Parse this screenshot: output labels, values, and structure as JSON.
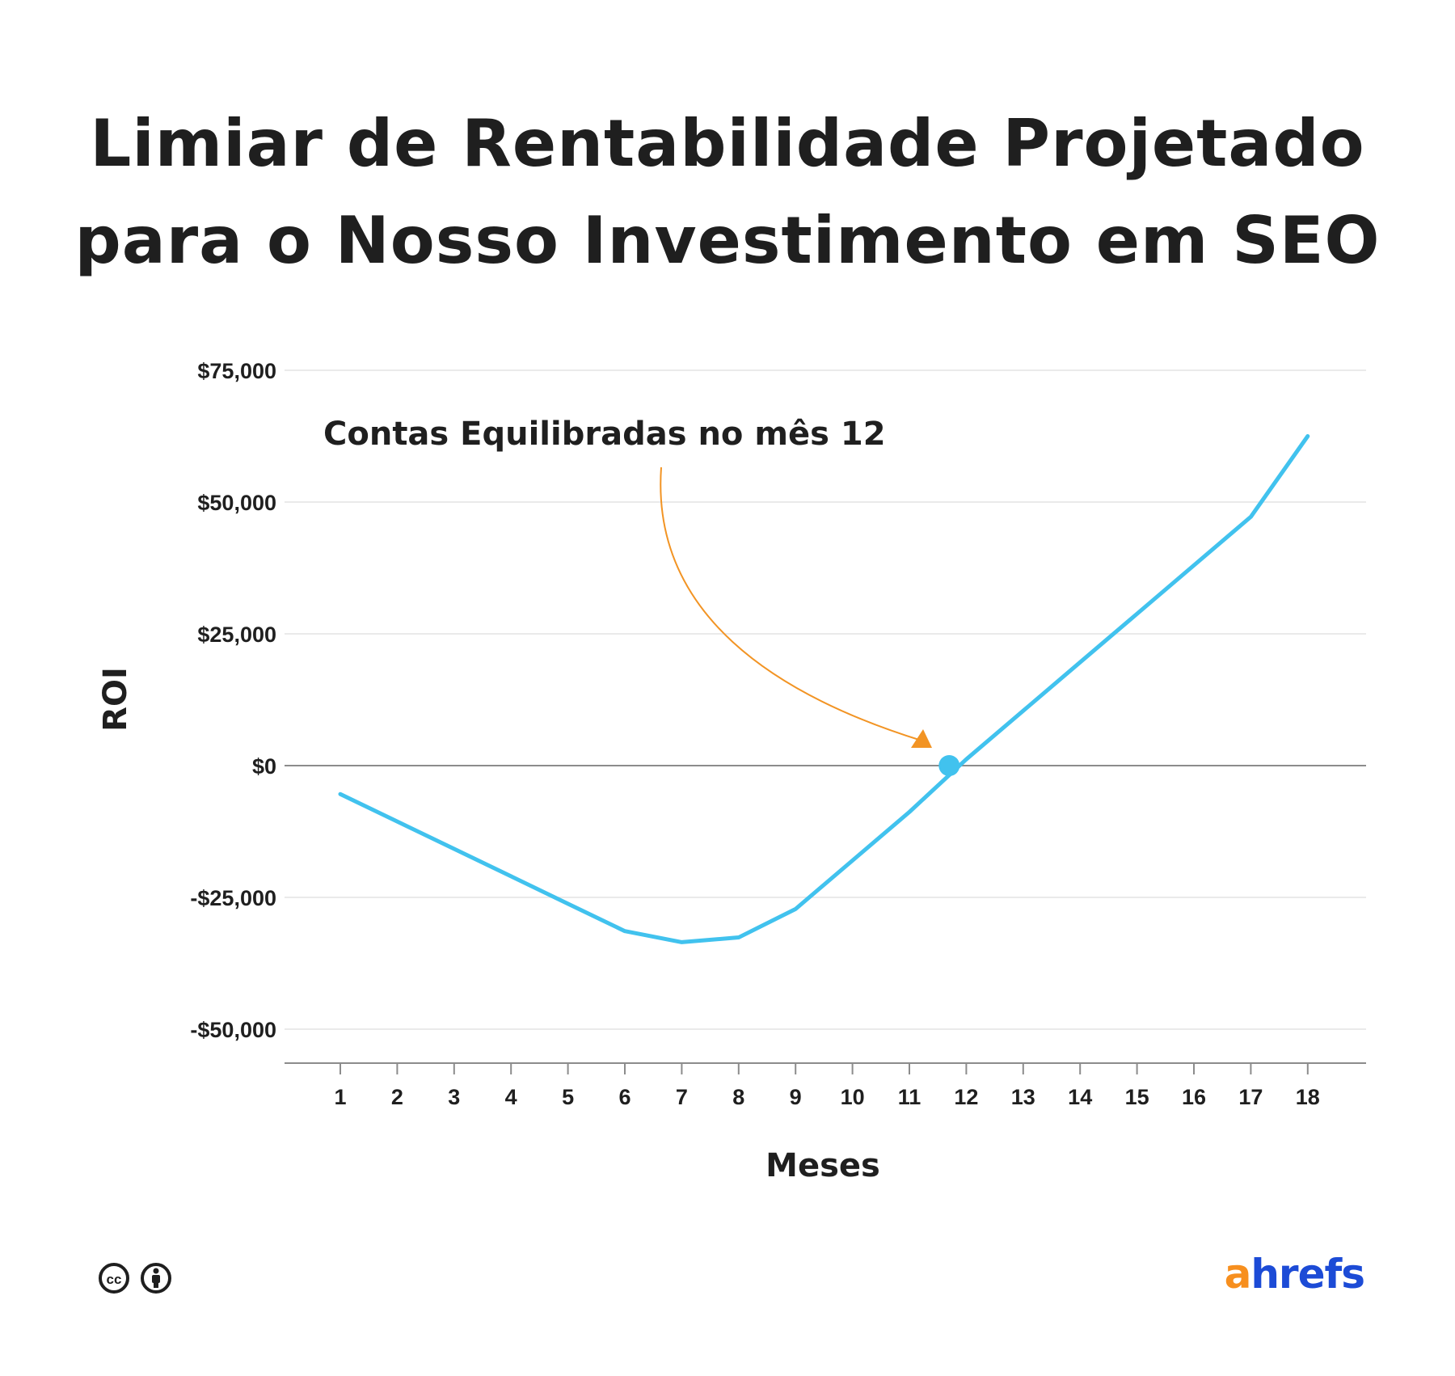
{
  "colors": {
    "line": "#41c2ee",
    "arrow": "#f29424",
    "grid": "#e3e3e3",
    "zero_line": "#8c8c8c",
    "logo_a": "#f78f1e",
    "logo_rest": "#1c4bd6"
  },
  "icons": [
    "creative-commons-icon",
    "attribution-icon"
  ],
  "logo": {
    "part1": "a",
    "part2": "hrefs"
  },
  "chart_data": {
    "type": "line",
    "title": "Limiar de Rentabilidade Projetado para o Nosso Investimento em SEO",
    "title_lines": [
      "Limiar de Rentabilidade Projetado",
      "para o Nosso Investimento em SEO"
    ],
    "xlabel": "Meses",
    "ylabel": "ROI",
    "x": [
      1,
      2,
      3,
      4,
      5,
      6,
      7,
      8,
      9,
      10,
      11,
      12,
      13,
      14,
      15,
      16,
      17,
      18
    ],
    "x_tick_labels": [
      "1",
      "2",
      "3",
      "4",
      "5",
      "6",
      "7",
      "8",
      "9",
      "10",
      "11",
      "12",
      "13",
      "14",
      "15",
      "16",
      "17",
      "18"
    ],
    "series": [
      {
        "values": [
          -5400,
          -10600,
          -15800,
          -21000,
          -26200,
          -31400,
          -33500,
          -32600,
          -27200,
          -18000,
          -8800,
          1200,
          10400,
          19600,
          28800,
          38000,
          47200,
          62500
        ]
      }
    ],
    "ylim": [
      -57000,
      75000
    ],
    "y_ticks": [
      75000,
      50000,
      25000,
      0,
      -25000,
      -50000
    ],
    "y_tick_labels": [
      "$75,000",
      "$50,000",
      "$25,000",
      "$0",
      "-$25,000",
      "-$50,000"
    ],
    "grid": true,
    "annotation": {
      "text": "Contas Equilibradas no mês 12",
      "break_even_x": 11.7,
      "break_even_y": 0
    }
  }
}
